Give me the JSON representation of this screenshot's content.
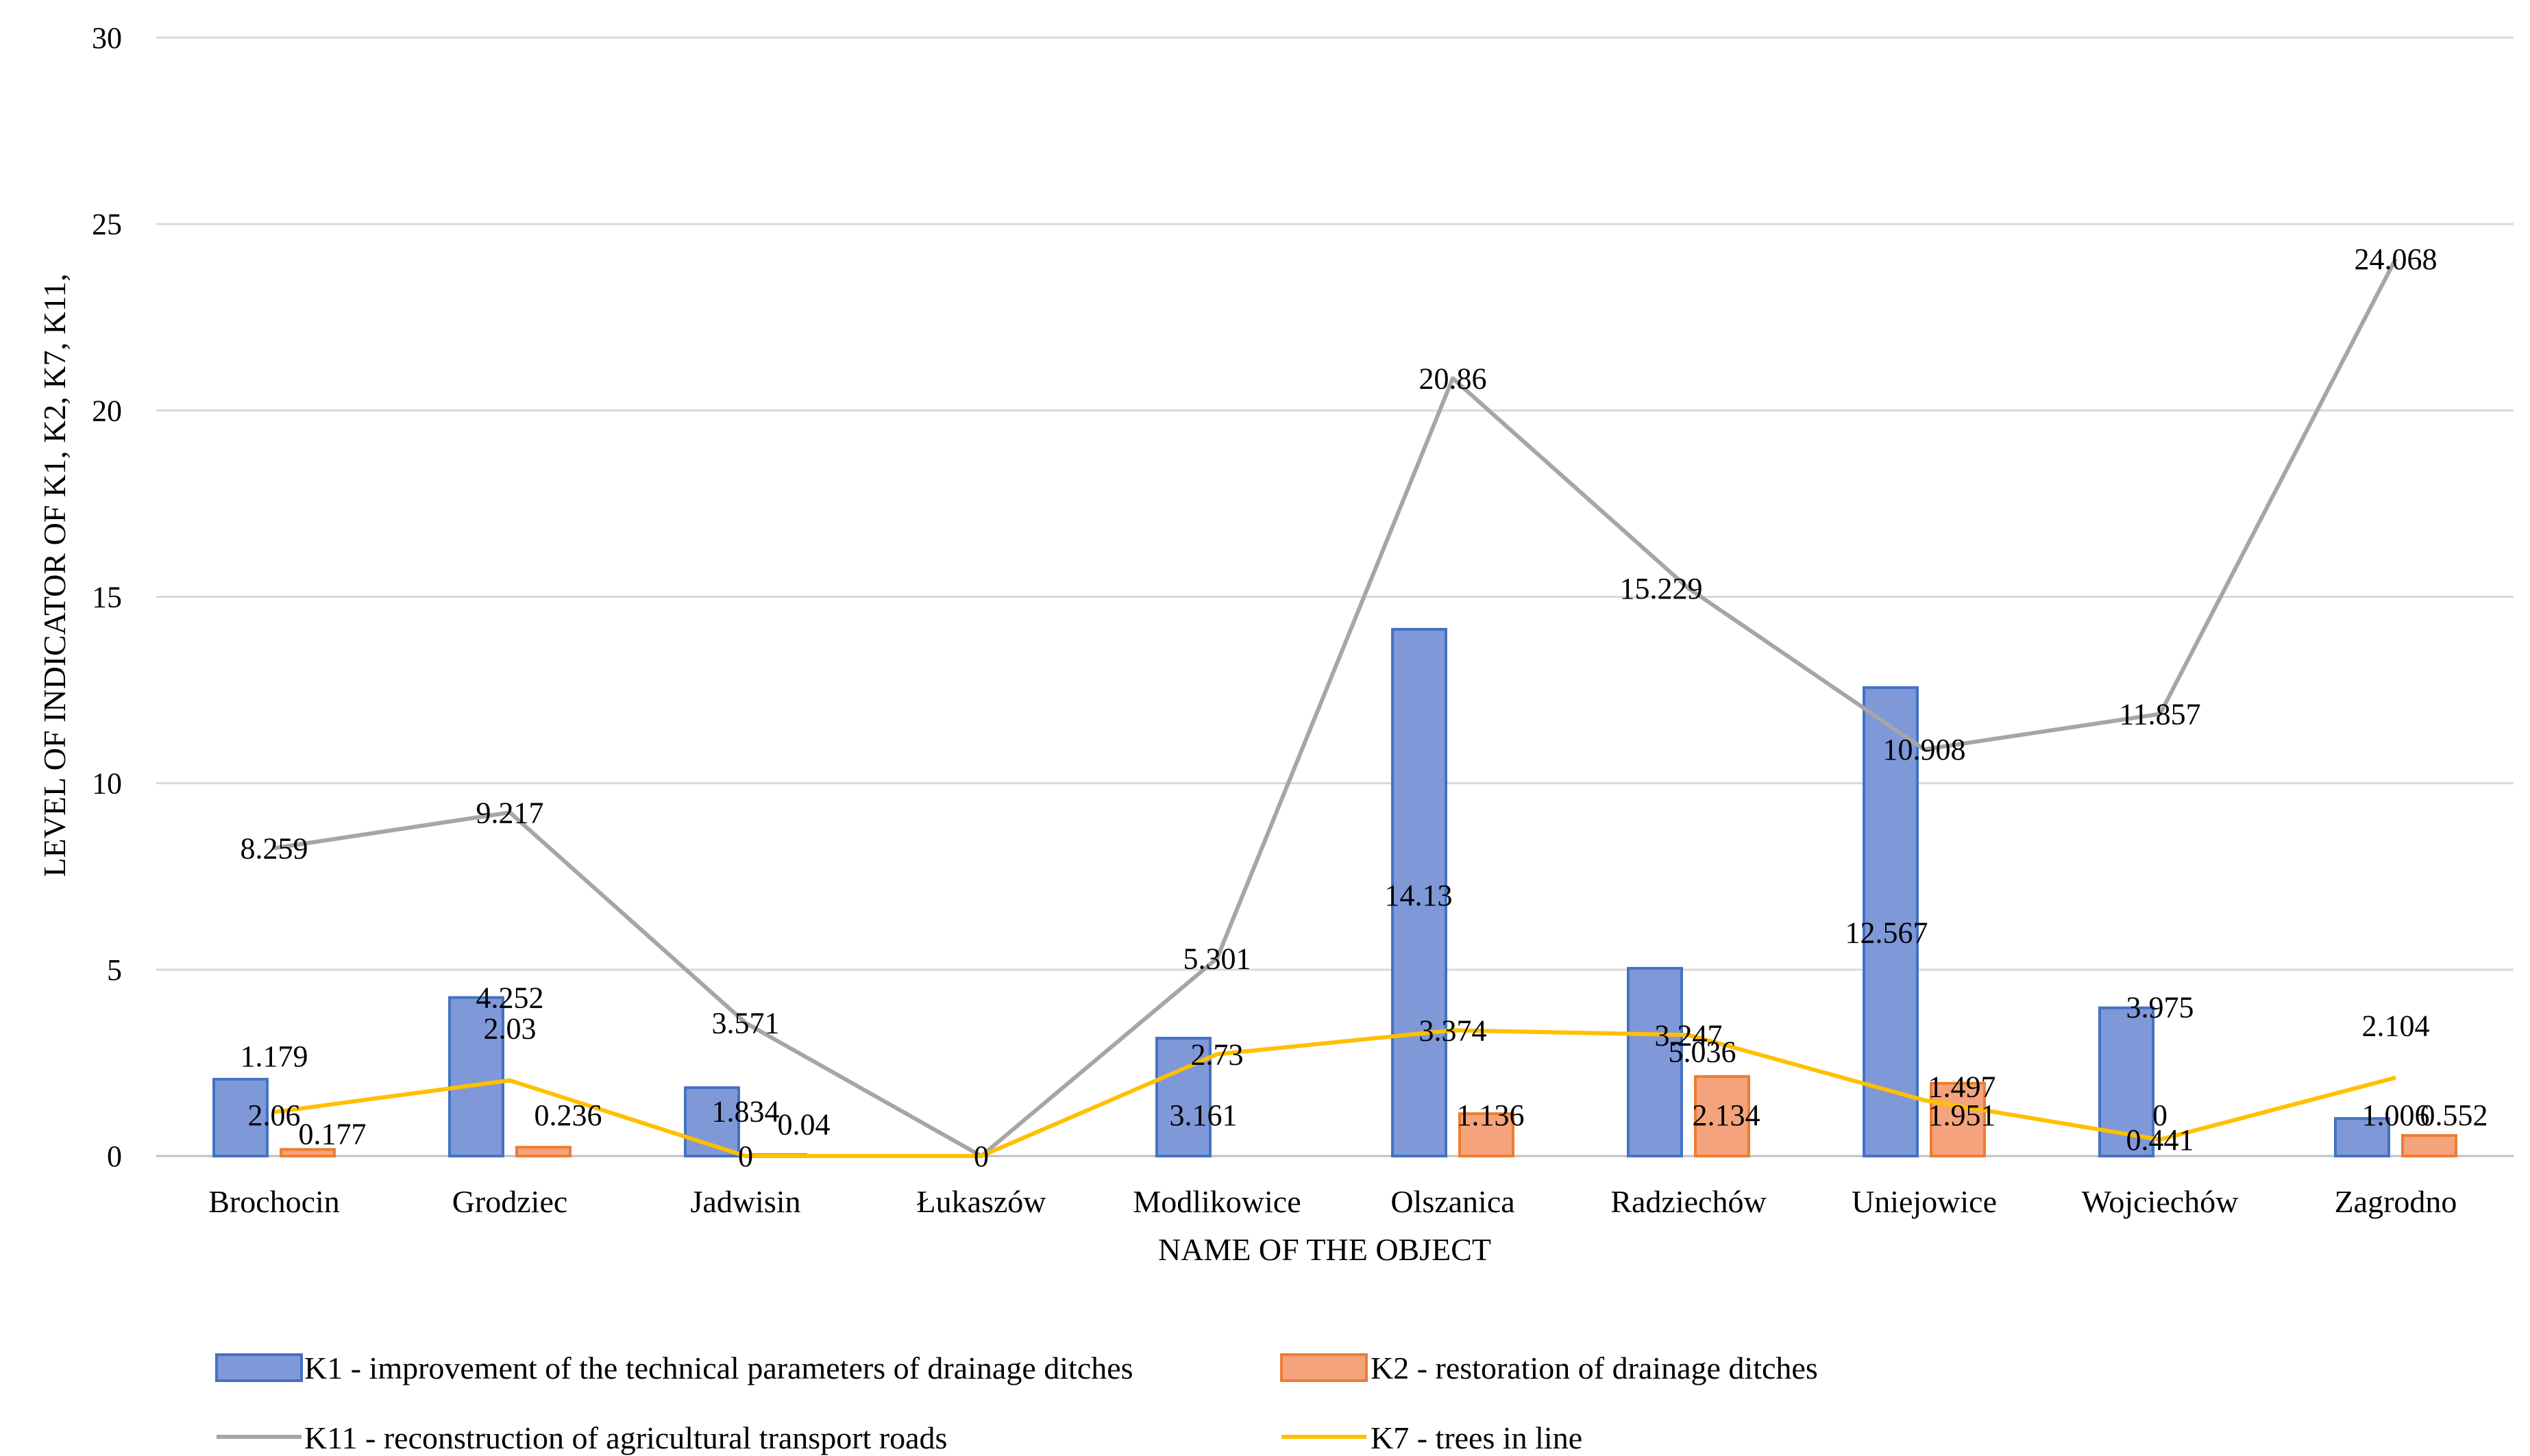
{
  "chart_data": {
    "type": "bar",
    "title": "",
    "xlabel": "NAME OF THE OBJECT",
    "ylabel": "LEVEL OF INDICATOR OF K1, K2, K7, K11,",
    "ylim": [
      0,
      30
    ],
    "yticks": [
      "0",
      "5",
      "10",
      "15",
      "20",
      "25",
      "30"
    ],
    "grid": true,
    "legend_position": "bottom",
    "categories": [
      "Brochocin",
      "Grodziec",
      "Jadwisin",
      "Łukaszów",
      "Modlikowice",
      "Olszanica",
      "Radziechów",
      "Uniejowice",
      "Wojciechów",
      "Zagrodno"
    ],
    "series": [
      {
        "name": "K1 - improvement of the technical parameters of drainage ditches",
        "kind": "bar",
        "color": "#7f98d8",
        "values": [
          2.06,
          4.252,
          1.834,
          0,
          3.161,
          14.13,
          5.036,
          12.567,
          3.975,
          1.006
        ],
        "labels": [
          "2.06",
          "4.252",
          "1.834",
          "",
          "3.161",
          "14.13",
          "5.036",
          "12.567",
          "3.975",
          "1.006"
        ]
      },
      {
        "name": "K2 - restoration of drainage ditches",
        "kind": "bar",
        "color": "#f4a37c",
        "values": [
          0.177,
          0.236,
          0.04,
          0,
          0,
          1.136,
          2.134,
          1.951,
          0,
          0.552
        ],
        "labels": [
          "0.177",
          "0.236",
          "0.04",
          "",
          "",
          "1.136",
          "2.134",
          "1.951",
          "0",
          "0.552"
        ]
      },
      {
        "name": "K11 - reconstruction of agricultural transport roads",
        "kind": "line",
        "color": "#a6a6a6",
        "values": [
          8.259,
          9.217,
          3.571,
          0,
          5.301,
          20.86,
          15.229,
          10.908,
          11.857,
          24.068
        ],
        "labels": [
          "8.259",
          "9.217",
          "3.571",
          "0",
          "5.301",
          "20.86",
          "15.229",
          "10.908",
          "11.857",
          "24.068"
        ]
      },
      {
        "name": "K7 - trees in line",
        "kind": "line",
        "color": "#ffc000",
        "values": [
          1.179,
          2.03,
          0,
          0,
          2.73,
          3.374,
          3.247,
          1.497,
          0.441,
          2.104
        ],
        "labels": [
          "1.179",
          "2.03",
          "0",
          "",
          "2.73",
          "3.374",
          "3.247",
          "1.497",
          "0.441",
          "2.104"
        ]
      }
    ]
  }
}
